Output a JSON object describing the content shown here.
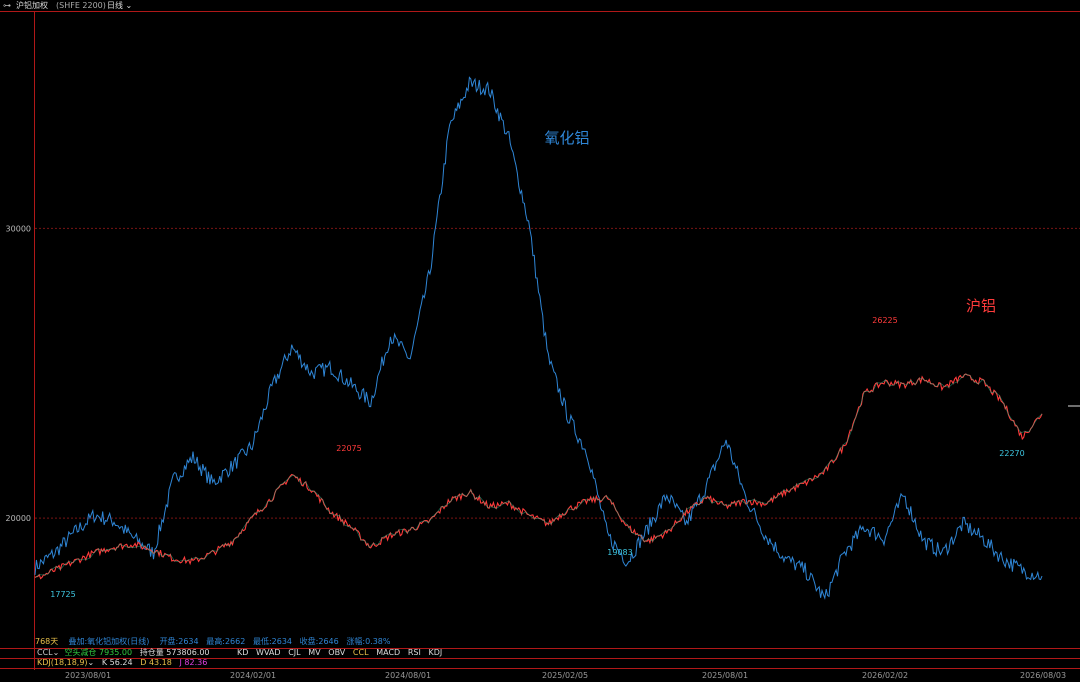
{
  "header": {
    "link_icon": "link-icon",
    "symbol": "沪铝加权",
    "code": "(SHFE 2200)",
    "period": "日线"
  },
  "info_line": {
    "days": "768天",
    "overlay": "叠加:氧化铝加权(日线)",
    "open": "开盘:2634",
    "high": "最高:2662",
    "low": "最低:2634",
    "close": "收盘:2646",
    "change": "涨幅:0.38%"
  },
  "indicators": {
    "ccl_name": "CCL",
    "ccl_text": "空头减仓 7935.00",
    "ccl_oi": "持仓量 573806.00",
    "tabs": [
      "KD",
      "WVAD",
      "CJL",
      "MV",
      "OBV",
      "CCL",
      "MACD",
      "RSI",
      "KDJ"
    ],
    "kdj_name": "KDJ(18,18,9)",
    "kdj_k": "K 56.24",
    "kdj_d": "D 43.18",
    "kdj_j": "J 82.36"
  },
  "chart_data": {
    "type": "line",
    "x_ticks": [
      "2023/08/01",
      "2024/02/01",
      "2024/08/01",
      "2025/02/05",
      "2025/08/01",
      "2026/02/02",
      "2026/08/03"
    ],
    "y_ticks": [
      20000,
      30000
    ],
    "ylim": [
      16000,
      37500
    ],
    "grid": "dashed-horizontal",
    "series": [
      {
        "name": "氧化铝",
        "color": "#2f86d6",
        "values": [
          18300,
          18800,
          19500,
          20100,
          19900,
          19300,
          18800,
          21300,
          22100,
          21200,
          21800,
          22500,
          24500,
          25900,
          25000,
          25200,
          24600,
          24000,
          26300,
          25500,
          28500,
          33500,
          35000,
          34800,
          33100,
          30200,
          25500,
          23500,
          22200,
          19400,
          18500,
          19600,
          20800,
          19800,
          21100,
          22700,
          20700,
          19400,
          18600,
          18200,
          17200,
          18800,
          19700,
          19300,
          20800,
          19200,
          18800,
          19800,
          19300,
          18600,
          18200,
          18000
        ]
      },
      {
        "name": "沪铝",
        "color": "#ff3b3b",
        "values": [
          17900,
          18200,
          18500,
          18800,
          19000,
          19100,
          18900,
          18600,
          18500,
          18800,
          19200,
          20000,
          20700,
          21500,
          21000,
          20200,
          19700,
          19000,
          19400,
          19600,
          19900,
          20600,
          20900,
          20400,
          20500,
          20100,
          19800,
          20300,
          20600,
          20700,
          19700,
          19200,
          19500,
          20200,
          20700,
          20400,
          20600,
          20500,
          20900,
          21200,
          21600,
          22500,
          24300,
          24700,
          24600,
          24800,
          24500,
          24900,
          24700,
          24000,
          22800,
          23600
        ]
      }
    ],
    "annotations": [
      {
        "text": "17725",
        "color": "#3ec6e0"
      },
      {
        "text": "22075",
        "color": "#ff3b3b"
      },
      {
        "text": "19083",
        "color": "#3ec6e0"
      },
      {
        "text": "26225",
        "color": "#ff3b3b"
      },
      {
        "text": "22270",
        "color": "#3ec6e0"
      },
      {
        "text": "氧化铝",
        "color": "#2f86d6"
      },
      {
        "text": "沪铝",
        "color": "#ff3b3b"
      }
    ]
  }
}
